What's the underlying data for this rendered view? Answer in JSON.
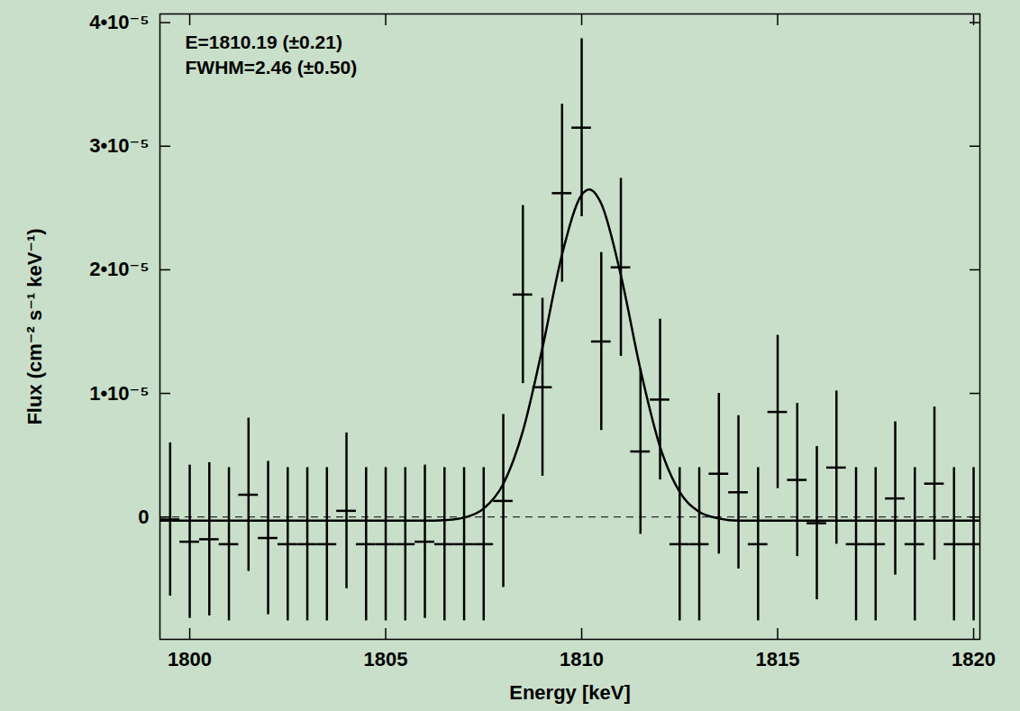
{
  "chart_data": {
    "type": "scatter",
    "xlabel": "Energy [keV]",
    "ylabel": "Flux (cm⁻² s⁻¹ keV⁻¹)",
    "annotations": [
      "E=1810.19 (±0.21)",
      "FWHM=2.46 (±0.50)"
    ],
    "color": "#000000",
    "marker": "errorbar",
    "x": [
      1799.5,
      1800.0,
      1800.5,
      1801.0,
      1801.5,
      1802.0,
      1802.5,
      1803.0,
      1803.5,
      1804.0,
      1804.5,
      1805.0,
      1805.5,
      1806.0,
      1806.5,
      1807.0,
      1807.5,
      1808.0,
      1808.5,
      1809.0,
      1809.5,
      1810.0,
      1810.5,
      1811.0,
      1811.5,
      1812.0,
      1812.5,
      1813.0,
      1813.5,
      1814.0,
      1814.5,
      1815.0,
      1815.5,
      1816.0,
      1816.5,
      1817.0,
      1817.5,
      1818.0,
      1818.5,
      1819.0,
      1819.5,
      1820.0
    ],
    "values": [
      -2e-07,
      -2e-06,
      -1.8e-06,
      -2.2e-06,
      1.8e-06,
      -1.7e-06,
      -2.2e-06,
      -2.2e-06,
      -2.2e-06,
      5e-07,
      -2.2e-06,
      -2.2e-06,
      -2.2e-06,
      -2e-06,
      -2.2e-06,
      -2.2e-06,
      -2.2e-06,
      1.3e-06,
      1.8e-05,
      1.05e-05,
      2.62e-05,
      3.15e-05,
      1.42e-05,
      2.02e-05,
      5.3e-06,
      9.5e-06,
      -2.2e-06,
      -2.2e-06,
      3.5e-06,
      2e-06,
      -2.2e-06,
      8.5e-06,
      3e-06,
      -5e-07,
      4e-06,
      -2.2e-06,
      -2.2e-06,
      1.5e-06,
      -2.2e-06,
      2.7e-06,
      -2.2e-06,
      -2.2e-06
    ],
    "yerr": [
      6.2e-06,
      6.2e-06,
      6.2e-06,
      6.2e-06,
      6.2e-06,
      6.2e-06,
      6.2e-06,
      6.2e-06,
      6.2e-06,
      6.3e-06,
      6.2e-06,
      6.2e-06,
      6.2e-06,
      6.2e-06,
      6.2e-06,
      6.2e-06,
      6.2e-06,
      7e-06,
      7.2e-06,
      7.2e-06,
      7.2e-06,
      7.2e-06,
      7.2e-06,
      7.2e-06,
      6.7e-06,
      6.5e-06,
      6.2e-06,
      6.2e-06,
      6.5e-06,
      6.2e-06,
      6.2e-06,
      6.2e-06,
      6.2e-06,
      6.2e-06,
      6.2e-06,
      6.2e-06,
      6.2e-06,
      6.2e-06,
      6.2e-06,
      6.2e-06,
      6.2e-06,
      6.2e-06
    ],
    "xerr": 0.25,
    "fit": {
      "type": "line",
      "line_style": "solid",
      "color": "#000000",
      "x": [
        1799.24,
        1806.0,
        1806.5,
        1807.0,
        1807.5,
        1808.0,
        1808.5,
        1809.0,
        1809.5,
        1810.0,
        1810.19,
        1810.5,
        1811.0,
        1811.5,
        1812.0,
        1812.5,
        1813.0,
        1813.5,
        1814.0,
        1820.16
      ],
      "values": [
        -3e-07,
        -3e-07,
        -2.5e-07,
        -5e-08,
        6.8e-07,
        2.68e-06,
        6.95e-06,
        1.37e-05,
        2.125e-05,
        2.606e-05,
        2.65e-05,
        2.535e-05,
        1.955e-05,
        1.192e-05,
        5.68e-06,
        2.03e-06,
        4.2e-07,
        -1.2e-07,
        -3e-07,
        -3e-07
      ]
    },
    "reference_line": {
      "y": 0,
      "line_style": "dashed"
    },
    "xlim": [
      1799.24,
      1820.16
    ],
    "ylim": [
      -9.9e-06,
      4.07e-05
    ],
    "xticks": [
      1800,
      1805,
      1810,
      1815,
      1820
    ],
    "yticks": [
      {
        "value": 0,
        "label": "0"
      },
      {
        "value": 1e-05,
        "label": "1•10⁻⁵"
      },
      {
        "value": 2e-05,
        "label": "2•10⁻⁵"
      },
      {
        "value": 3e-05,
        "label": "3•10⁻⁵"
      },
      {
        "value": 4e-05,
        "label": "4•10⁻⁵"
      }
    ],
    "grid": false
  }
}
